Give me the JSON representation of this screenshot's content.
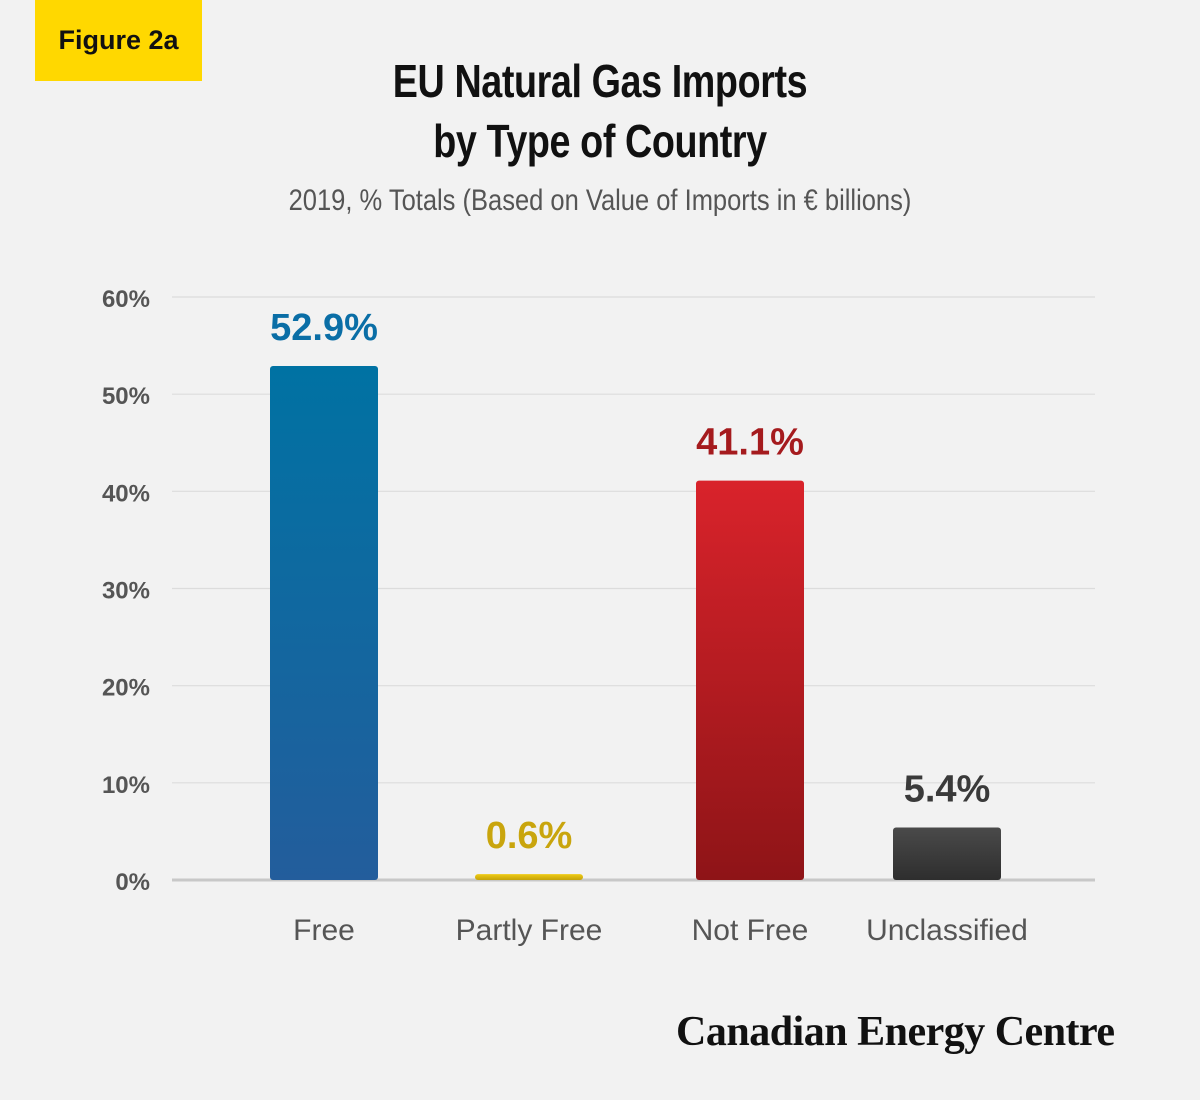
{
  "badge": {
    "label": "Figure 2a"
  },
  "header": {
    "title_line1": "EU Natural Gas Imports",
    "title_line2": "by Type of Country",
    "subtitle": "2019, % Totals (Based on Value of Imports in € billions)"
  },
  "footer": {
    "logo_text": "Canadian Energy Centre"
  },
  "chart_data": {
    "type": "bar",
    "categories": [
      "Free",
      "Partly Free",
      "Not Free",
      "Unclassified"
    ],
    "values": [
      52.9,
      0.6,
      41.1,
      5.4
    ],
    "data_labels": [
      "52.9%",
      "0.6%",
      "41.1%",
      "5.4%"
    ],
    "ylim": [
      0,
      60
    ],
    "yticks": [
      0,
      10,
      20,
      30,
      40,
      50,
      60
    ],
    "ytick_labels": [
      "0%",
      "10%",
      "20%",
      "30%",
      "40%",
      "50%",
      "60%"
    ],
    "grid": true,
    "bar_colors": [
      {
        "top": "#0072a3",
        "bottom": "#235d9c",
        "label": "#0a6ea6"
      },
      {
        "top": "#f0cc14",
        "bottom": "#c4a20a",
        "label": "#c9a50d"
      },
      {
        "top": "#d9232b",
        "bottom": "#8e1417",
        "label": "#a51b1e"
      },
      {
        "top": "#4a4a4a",
        "bottom": "#2e2e2e",
        "label": "#3a3a3a"
      }
    ]
  }
}
